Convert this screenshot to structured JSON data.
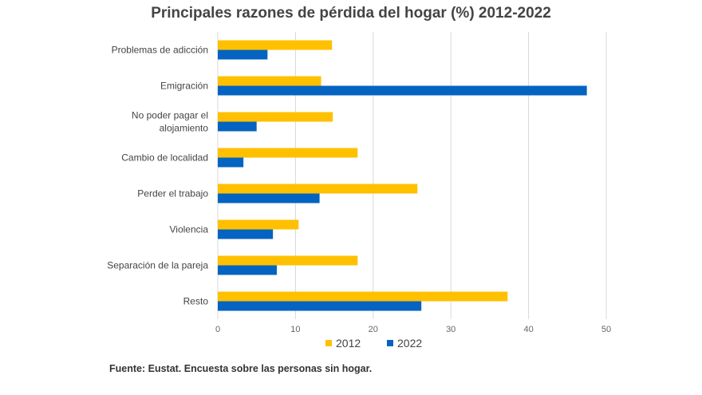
{
  "chart_data": {
    "type": "bar",
    "orientation": "horizontal",
    "title": "Principales razones de pérdida del hogar (%)  2012-2022",
    "categories": [
      "Problemas de adicción",
      "Emigración",
      "No poder pagar el alojamiento",
      "Cambio de localidad",
      "Perder el trabajo",
      "Violencia",
      "Separación de la pareja",
      "Resto"
    ],
    "category_lines": [
      [
        "Problemas de adicción"
      ],
      [
        "Emigración"
      ],
      [
        "No poder pagar el",
        "alojamiento"
      ],
      [
        "Cambio de localidad"
      ],
      [
        "Perder el trabajo"
      ],
      [
        "Violencia"
      ],
      [
        "Separación de la pareja"
      ],
      [
        "Resto"
      ]
    ],
    "series": [
      {
        "name": "2012",
        "color": "#FFC000",
        "values": [
          14.7,
          13.3,
          14.8,
          18.0,
          25.7,
          10.4,
          18.0,
          37.3
        ]
      },
      {
        "name": "2022",
        "color": "#0563C1",
        "values": [
          6.4,
          47.5,
          5.0,
          3.3,
          13.1,
          7.1,
          7.6,
          26.2
        ]
      }
    ],
    "xlim": [
      0,
      50
    ],
    "xticks": [
      0,
      10,
      20,
      30,
      40,
      50
    ],
    "grid": true,
    "legend": "bottom",
    "xlabel": "",
    "ylabel": ""
  },
  "source": "Fuente: Eustat. Encuesta sobre las personas sin hogar."
}
